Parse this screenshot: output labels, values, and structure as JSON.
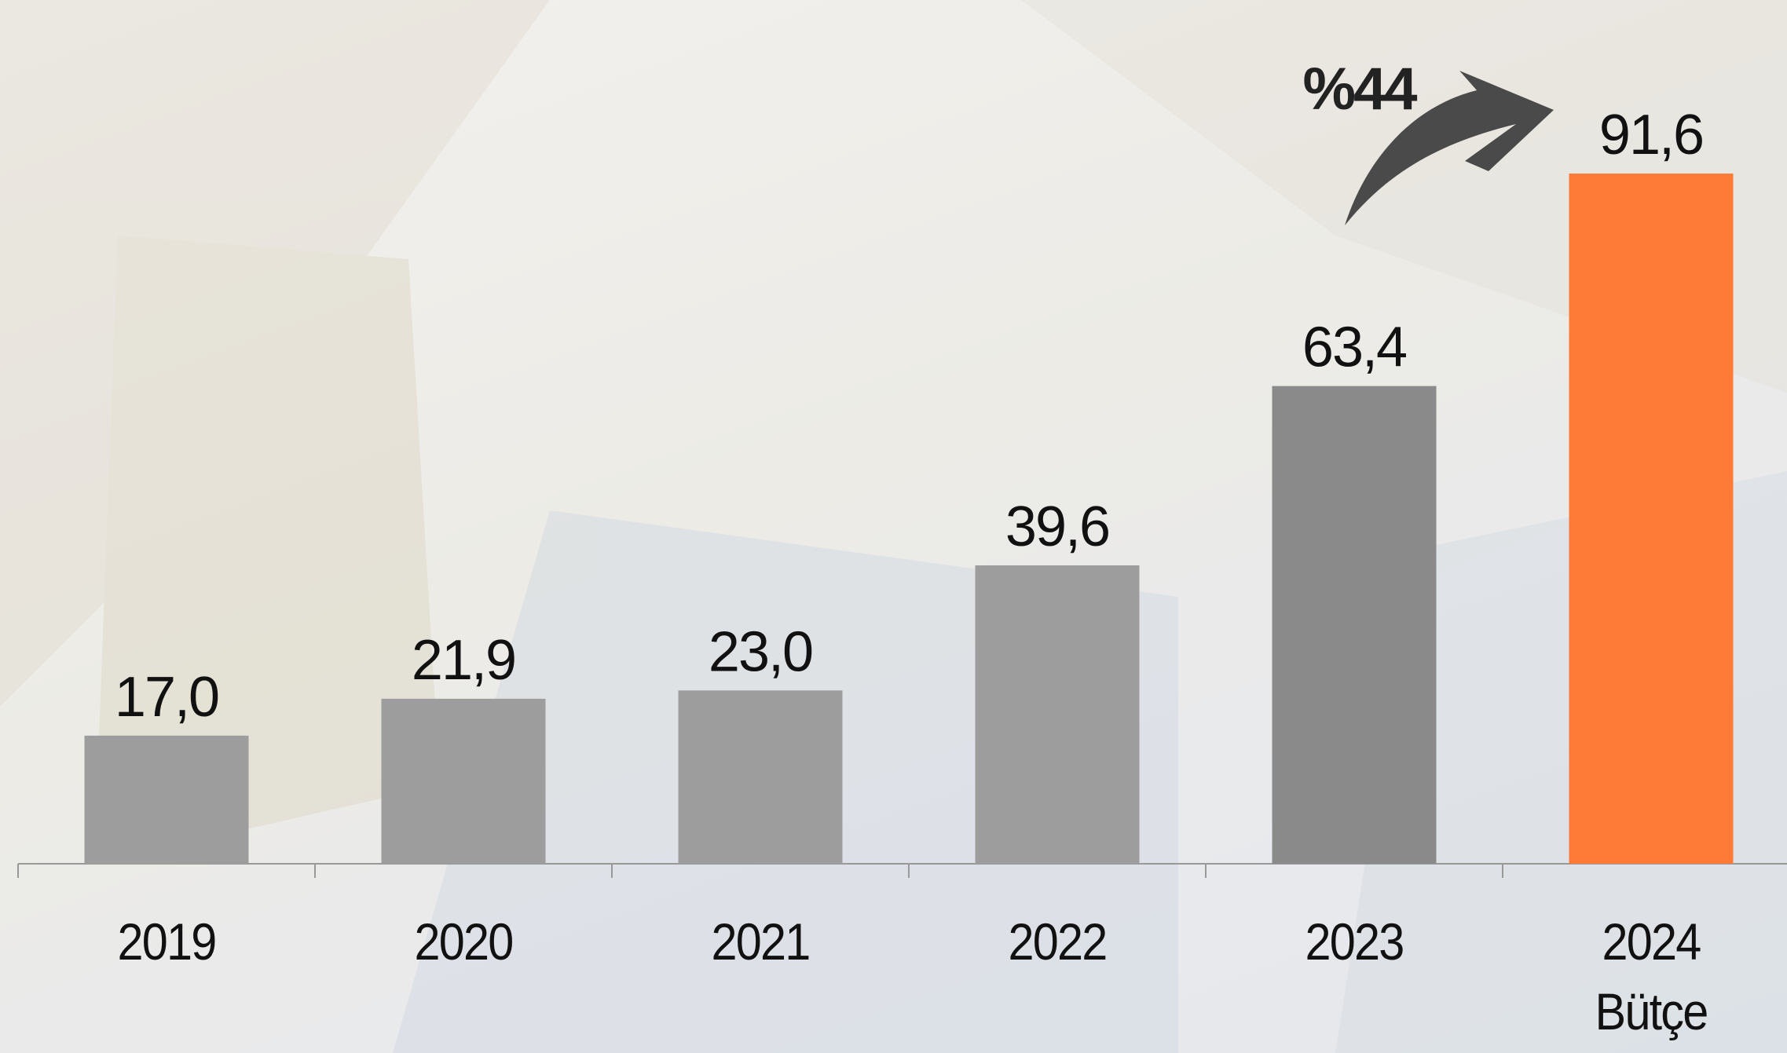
{
  "chart_data": {
    "type": "bar",
    "annotation": "%44",
    "categories": [
      "2019",
      "2020",
      "2021",
      "2022",
      "2023",
      "2024\nBütçe"
    ],
    "values": [
      17.0,
      21.9,
      23.0,
      39.6,
      63.4,
      91.6
    ],
    "value_labels": [
      "17,0",
      "21,9",
      "23,0",
      "39,6",
      "63,4",
      "91,6"
    ],
    "colors": [
      "#9d9d9d",
      "#9d9d9d",
      "#9d9d9d",
      "#9d9d9d",
      "#8a8a8a",
      "#fe7a37"
    ]
  }
}
